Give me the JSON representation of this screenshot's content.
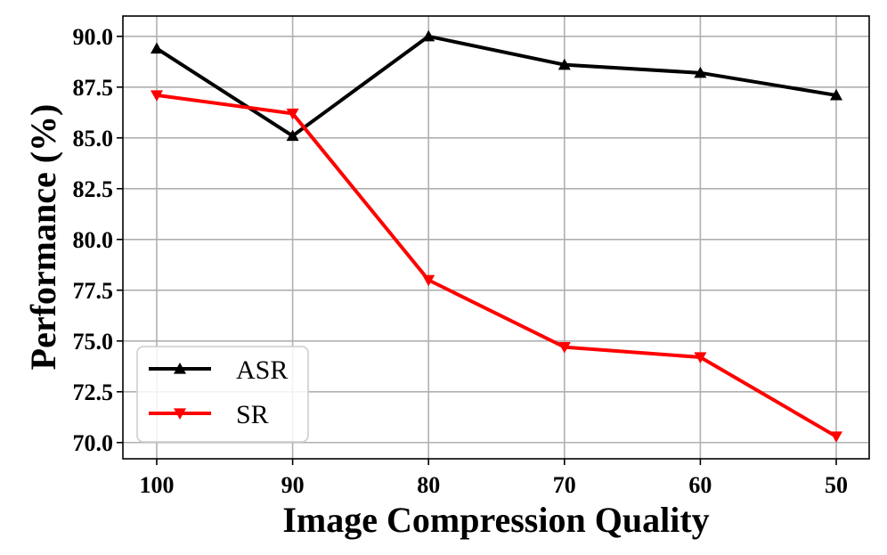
{
  "chart_data": {
    "type": "line",
    "title": "",
    "xlabel": "Image Compression Quality",
    "ylabel": "Performance (%)",
    "categories": [
      "100",
      "90",
      "80",
      "70",
      "60",
      "50"
    ],
    "ylim": [
      69.2,
      91.0
    ],
    "yticks": [
      "70.0",
      "72.5",
      "75.0",
      "77.5",
      "80.0",
      "82.5",
      "85.0",
      "87.5",
      "90.0"
    ],
    "grid": true,
    "legend_position": "lower-left",
    "series": [
      {
        "name": "ASR",
        "values": [
          89.4,
          85.1,
          90.0,
          88.6,
          88.2,
          87.1
        ],
        "color": "#000000",
        "marker": "triangle-up"
      },
      {
        "name": "SR",
        "values": [
          87.1,
          86.2,
          78.0,
          74.7,
          74.2,
          70.3
        ],
        "color": "#ff0000",
        "marker": "triangle-down"
      }
    ]
  }
}
